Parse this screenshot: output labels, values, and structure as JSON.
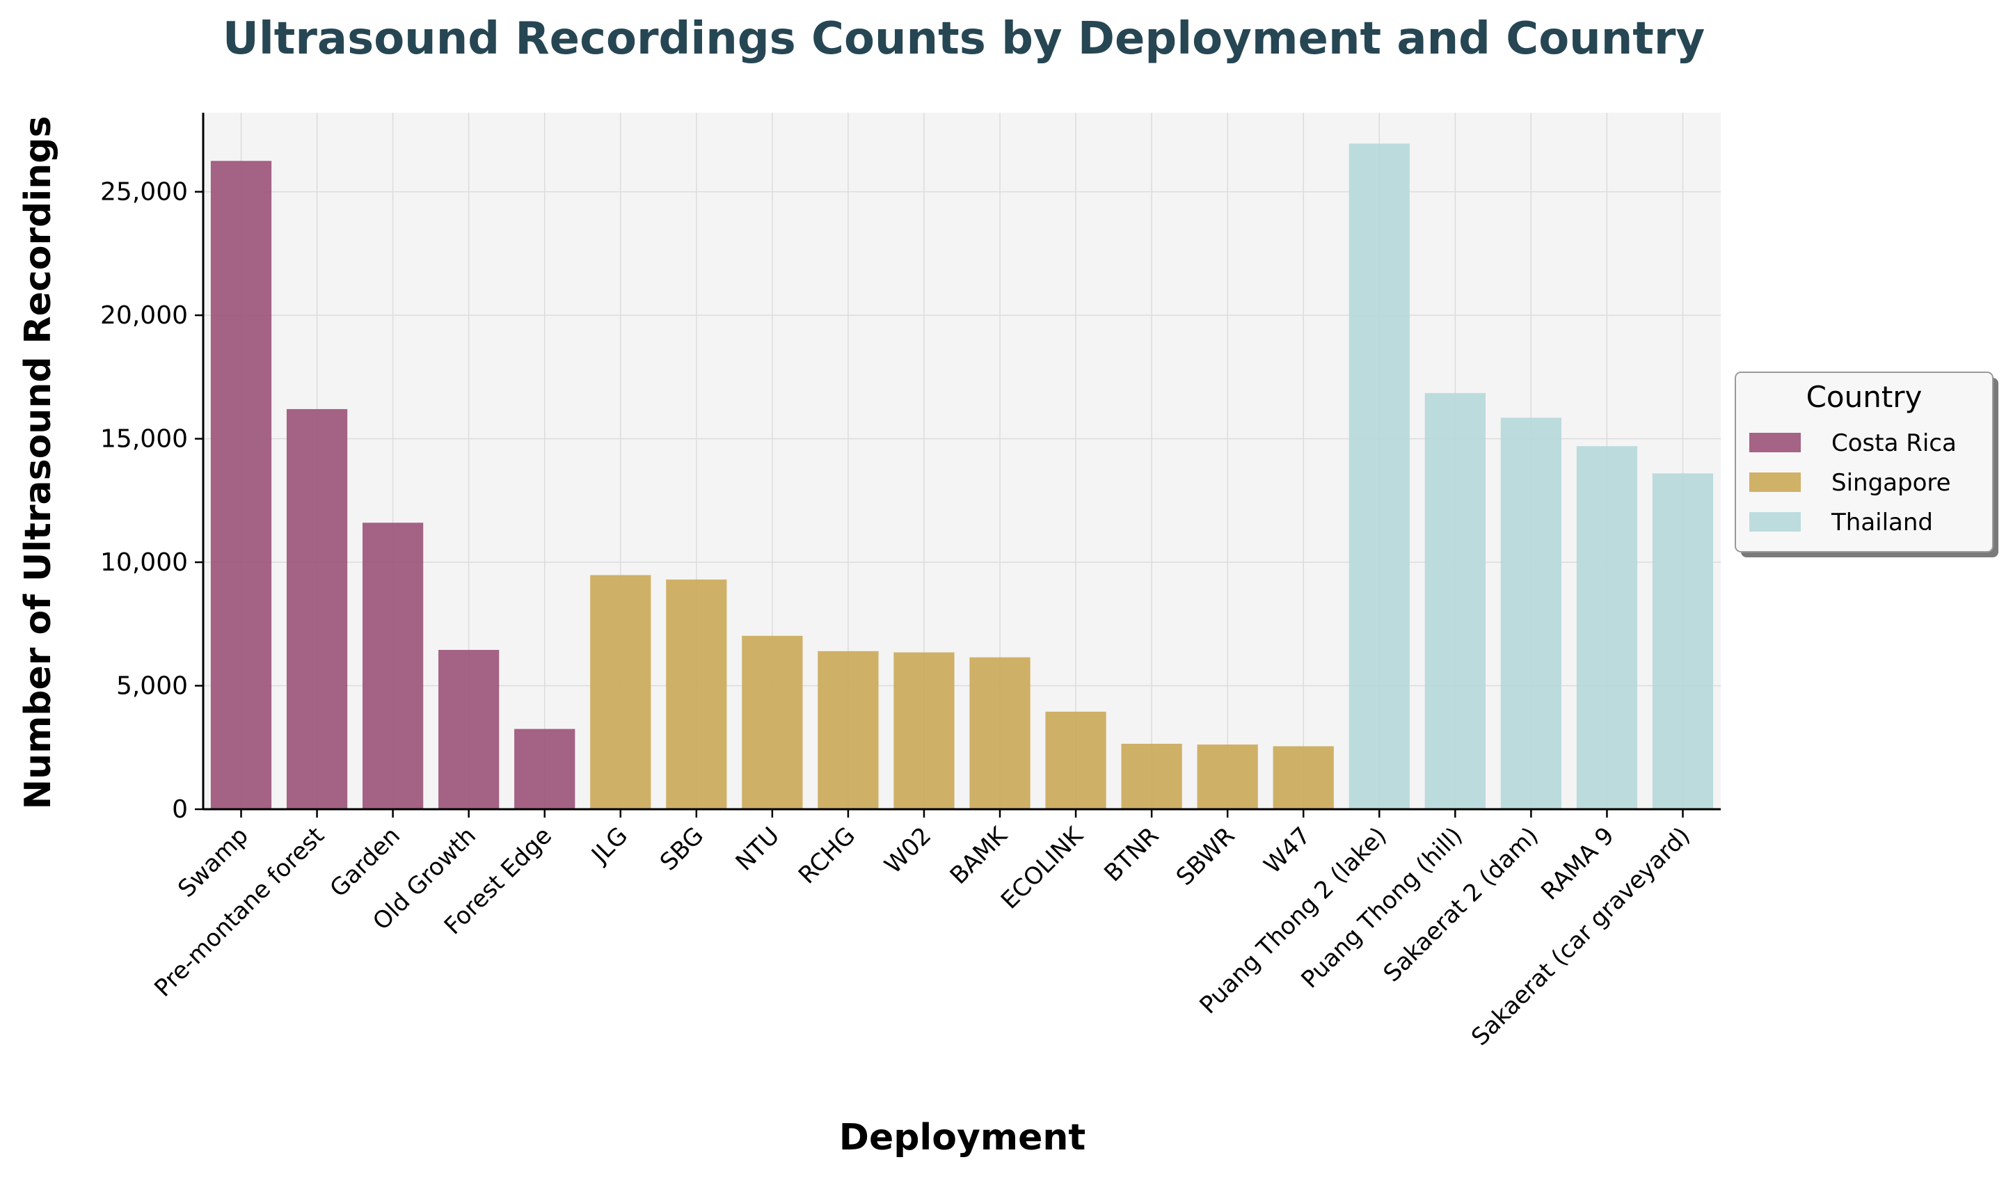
{
  "chart_data": {
    "type": "bar",
    "title": "Ultrasound Recordings Counts by Deployment and Country",
    "xlabel": "Deployment",
    "ylabel": "Number of Ultrasound Recordings",
    "ylim": [
      0,
      28200
    ],
    "yticks": [
      0,
      5000,
      10000,
      15000,
      20000,
      25000
    ],
    "ytick_labels": [
      "0",
      "5,000",
      "10,000",
      "15,000",
      "20,000",
      "25,000"
    ],
    "grid": true,
    "legend": {
      "title": "Country",
      "placement": "right-center",
      "entries": [
        {
          "name": "Costa Rica",
          "color": "#9b5278"
        },
        {
          "name": "Singapore",
          "color": "#cba958"
        },
        {
          "name": "Thailand",
          "color": "#b6d8da"
        }
      ]
    },
    "categories": [
      "Swamp",
      "Pre-montane forest",
      "Garden",
      "Old Growth",
      "Forest Edge",
      "JLG",
      "SBG",
      "NTU",
      "RCHG",
      "W02",
      "BAMK",
      "ECOLINK",
      "BTNR",
      "SBWR",
      "W47",
      "Puang Thong 2 (lake)",
      "Puang Thong (hill)",
      "Sakaerat 2 (dam)",
      "RAMA 9",
      "Sakaerat (car graveyard)"
    ],
    "values": [
      26250,
      16200,
      11600,
      6450,
      3250,
      9480,
      9300,
      7020,
      6400,
      6350,
      6150,
      3950,
      2650,
      2620,
      2550,
      26950,
      16850,
      15850,
      14700,
      13600
    ],
    "countries": [
      "Costa Rica",
      "Costa Rica",
      "Costa Rica",
      "Costa Rica",
      "Costa Rica",
      "Singapore",
      "Singapore",
      "Singapore",
      "Singapore",
      "Singapore",
      "Singapore",
      "Singapore",
      "Singapore",
      "Singapore",
      "Singapore",
      "Thailand",
      "Thailand",
      "Thailand",
      "Thailand",
      "Thailand"
    ]
  },
  "colors": {
    "title": "#264653",
    "plot_bg": "#f4f4f4",
    "grid": "#dcdcdc"
  }
}
